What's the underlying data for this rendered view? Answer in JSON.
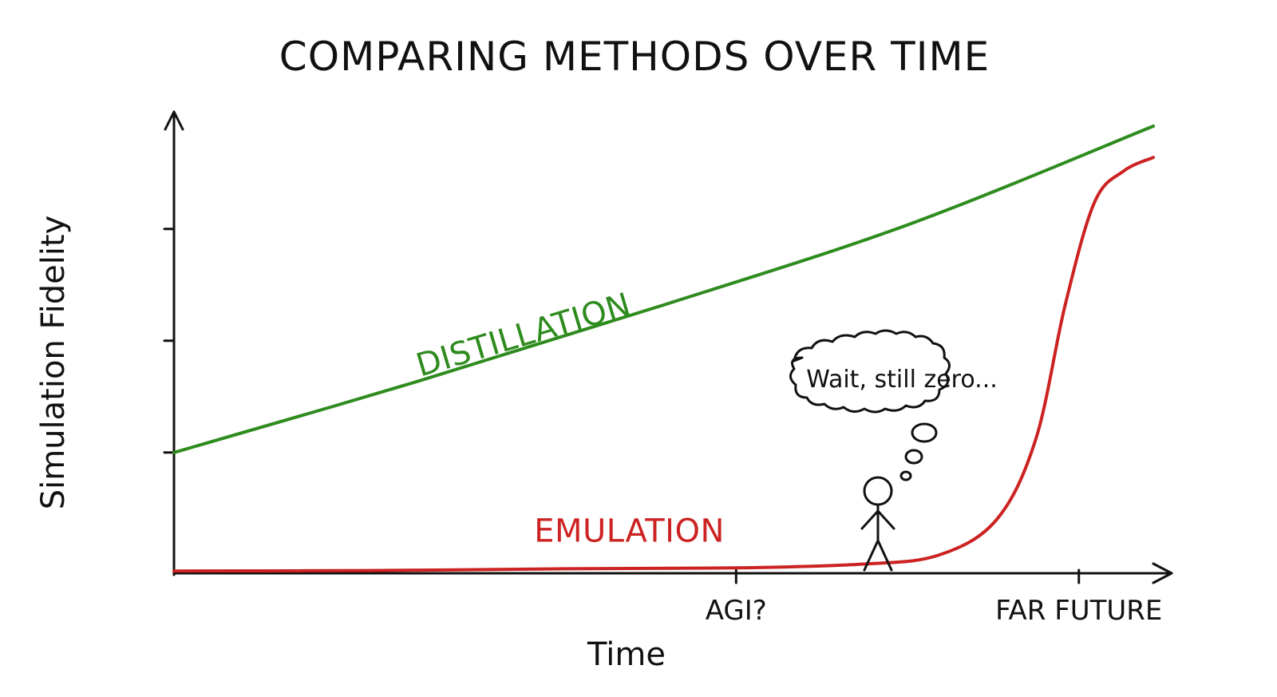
{
  "chart_data": {
    "type": "line",
    "title": "COMPARING METHODS OVER TIME",
    "xlabel": "Time",
    "ylabel": "Simulation Fidelity",
    "x_ticks": [
      {
        "label": "AGI?",
        "x": 0.574
      },
      {
        "label": "FAR FUTURE",
        "x": 0.924
      }
    ],
    "xlim": [
      0,
      1
    ],
    "ylim": [
      0,
      1
    ],
    "y_ticks_unlabeled": [
      0.27,
      0.52,
      0.77
    ],
    "series": [
      {
        "name": "DISTILLATION",
        "color": "#2e8b1e",
        "points": [
          [
            0,
            0.27
          ],
          [
            0.25,
            0.43
          ],
          [
            0.5,
            0.6
          ],
          [
            0.75,
            0.78
          ],
          [
            1.0,
            1.0
          ]
        ]
      },
      {
        "name": "EMULATION",
        "color": "#cc2222",
        "points": [
          [
            0,
            0.005
          ],
          [
            0.2,
            0.006
          ],
          [
            0.4,
            0.01
          ],
          [
            0.574,
            0.012
          ],
          [
            0.7,
            0.02
          ],
          [
            0.78,
            0.04
          ],
          [
            0.84,
            0.12
          ],
          [
            0.88,
            0.3
          ],
          [
            0.91,
            0.6
          ],
          [
            0.94,
            0.83
          ],
          [
            0.97,
            0.9
          ],
          [
            1.0,
            0.93
          ]
        ]
      }
    ],
    "annotation": {
      "text": "Wait, still zero...",
      "type": "thought-bubble",
      "figure": "stick-figure"
    },
    "grid": false,
    "legend": "inline-labels"
  }
}
